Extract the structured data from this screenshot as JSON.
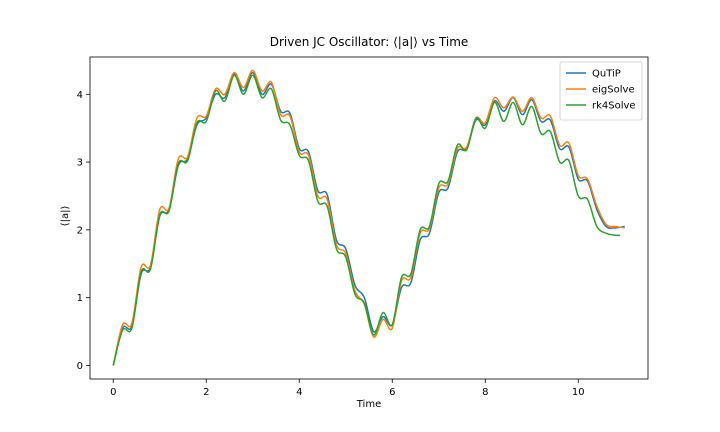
{
  "chart_data": {
    "type": "line",
    "title": "Driven JC Oscillator: ⟨|a|⟩ vs Time",
    "xlabel": "Time",
    "ylabel": "⟨|a|⟩",
    "xlim": [
      -0.5,
      11.5
    ],
    "ylim": [
      -0.2,
      4.55
    ],
    "xticks": [
      0,
      2,
      4,
      6,
      8,
      10
    ],
    "yticks": [
      0,
      1,
      2,
      3,
      4
    ],
    "grid": false,
    "legend_position": "top-right",
    "series": [
      {
        "name": "QuTiP",
        "color": "#1f77b4",
        "x": [
          0,
          0.2,
          0.4,
          0.6,
          0.8,
          1.0,
          1.2,
          1.4,
          1.6,
          1.8,
          2.0,
          2.2,
          2.4,
          2.6,
          2.8,
          3.0,
          3.2,
          3.4,
          3.6,
          3.8,
          4.0,
          4.2,
          4.4,
          4.6,
          4.8,
          5.0,
          5.2,
          5.4,
          5.6,
          5.8,
          6.0,
          6.2,
          6.4,
          6.6,
          6.8,
          7.0,
          7.2,
          7.4,
          7.6,
          7.8,
          8.0,
          8.2,
          8.4,
          8.6,
          8.8,
          9.0,
          9.2,
          9.4,
          9.6,
          9.8,
          10.0,
          10.2,
          10.4,
          10.6,
          10.8,
          11.0
        ],
        "y": [
          0.0,
          0.55,
          0.58,
          1.35,
          1.45,
          2.2,
          2.3,
          2.95,
          3.05,
          3.55,
          3.65,
          4.0,
          3.95,
          4.3,
          4.05,
          4.32,
          4.0,
          4.15,
          3.75,
          3.72,
          3.2,
          3.15,
          2.58,
          2.52,
          1.85,
          1.72,
          1.18,
          1.0,
          0.5,
          0.72,
          0.6,
          1.15,
          1.22,
          1.85,
          1.95,
          2.55,
          2.62,
          3.15,
          3.2,
          3.62,
          3.55,
          3.9,
          3.75,
          3.95,
          3.7,
          3.92,
          3.6,
          3.62,
          3.2,
          3.22,
          2.75,
          2.72,
          2.3,
          2.05,
          2.03,
          2.05
        ]
      },
      {
        "name": "eigSolve",
        "color": "#ff7f0e",
        "x": [
          0,
          0.2,
          0.4,
          0.6,
          0.8,
          1.0,
          1.2,
          1.4,
          1.6,
          1.8,
          2.0,
          2.2,
          2.4,
          2.6,
          2.8,
          3.0,
          3.2,
          3.4,
          3.6,
          3.8,
          4.0,
          4.2,
          4.4,
          4.6,
          4.8,
          5.0,
          5.2,
          5.4,
          5.6,
          5.8,
          6.0,
          6.2,
          6.4,
          6.6,
          6.8,
          7.0,
          7.2,
          7.4,
          7.6,
          7.8,
          8.0,
          8.2,
          8.4,
          8.6,
          8.8,
          9.0,
          9.2,
          9.4,
          9.6,
          9.8,
          10.0,
          10.2,
          10.4,
          10.6,
          10.8,
          11.0
        ],
        "y": [
          0.0,
          0.6,
          0.62,
          1.45,
          1.48,
          2.3,
          2.32,
          3.05,
          3.08,
          3.65,
          3.68,
          4.08,
          4.0,
          4.32,
          4.1,
          4.35,
          4.05,
          4.18,
          3.7,
          3.68,
          3.15,
          3.1,
          2.5,
          2.45,
          1.78,
          1.65,
          1.1,
          0.9,
          0.42,
          0.68,
          0.55,
          1.25,
          1.3,
          1.95,
          2.02,
          2.62,
          2.68,
          3.2,
          3.22,
          3.65,
          3.58,
          3.95,
          3.8,
          3.96,
          3.75,
          3.95,
          3.65,
          3.68,
          3.25,
          3.28,
          2.8,
          2.75,
          2.35,
          2.08,
          2.05,
          2.03
        ]
      },
      {
        "name": "rk4Solve",
        "color": "#2ca02c",
        "x": [
          0,
          0.2,
          0.4,
          0.6,
          0.8,
          1.0,
          1.2,
          1.4,
          1.6,
          1.8,
          2.0,
          2.2,
          2.4,
          2.6,
          2.8,
          3.0,
          3.2,
          3.4,
          3.6,
          3.8,
          4.0,
          4.2,
          4.4,
          4.6,
          4.8,
          5.0,
          5.2,
          5.4,
          5.6,
          5.8,
          6.0,
          6.2,
          6.4,
          6.6,
          6.8,
          7.0,
          7.2,
          7.4,
          7.6,
          7.8,
          8.0,
          8.2,
          8.4,
          8.6,
          8.8,
          9.0,
          9.2,
          9.4,
          9.6,
          9.8,
          10.0,
          10.2,
          10.4,
          10.6,
          10.8,
          10.9
        ],
        "y": [
          0.0,
          0.52,
          0.55,
          1.38,
          1.42,
          2.22,
          2.28,
          2.98,
          3.02,
          3.58,
          3.6,
          4.05,
          3.9,
          4.28,
          4.0,
          4.28,
          3.95,
          4.08,
          3.62,
          3.55,
          3.1,
          3.02,
          2.42,
          2.35,
          1.72,
          1.6,
          1.05,
          0.92,
          0.45,
          0.78,
          0.6,
          1.3,
          1.35,
          2.0,
          2.05,
          2.68,
          2.72,
          3.25,
          3.18,
          3.65,
          3.5,
          3.88,
          3.6,
          3.88,
          3.55,
          3.82,
          3.42,
          3.45,
          3.0,
          3.02,
          2.5,
          2.45,
          2.05,
          1.95,
          1.92,
          1.92
        ]
      }
    ]
  }
}
